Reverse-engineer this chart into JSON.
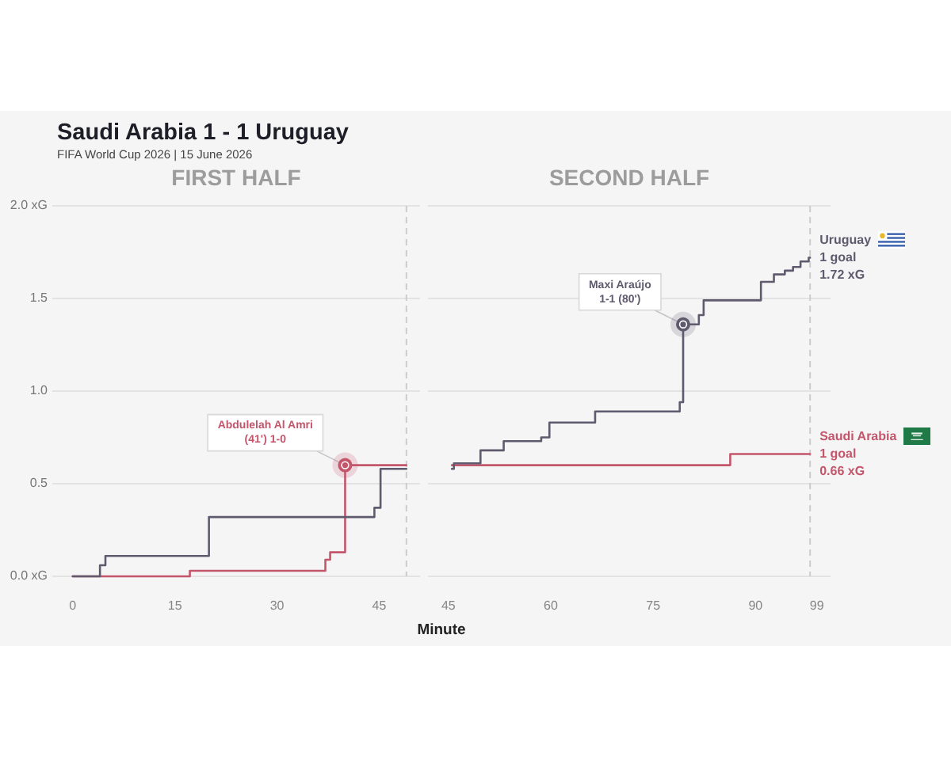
{
  "chart_data": [
    {
      "type": "other",
      "title": "Saudi Arabia 1 - 1 Uruguay",
      "subtitle": "FIFA World Cup 2026 | 15 June 2026"
    },
    {
      "type": "step",
      "title": "FIRST HALF",
      "xlim": [
        -3,
        51
      ],
      "xticks": [
        0,
        15,
        30,
        45
      ],
      "ylim": [
        0,
        2
      ],
      "yticks": [
        {
          "value": 0,
          "label": "0.0 xG"
        },
        0.5,
        {
          "value": 1,
          "label": "1.0"
        },
        1.5,
        {
          "value": 2,
          "label": "2.0 xG"
        }
      ],
      "grid": "y",
      "series": [
        {
          "color": "#5f5a6e",
          "x": [
            0,
            4,
            4.8,
            20,
            44.3,
            45.2,
            49
          ],
          "values": [
            0,
            0.06,
            0.11,
            0.32,
            0.37,
            0.58,
            0.58
          ]
        },
        {
          "color": "#c4566c",
          "x": [
            0,
            17.2,
            37.1,
            37.8,
            40,
            49
          ],
          "values": [
            0,
            0.03,
            0.09,
            0.13,
            0.6,
            0.6
          ]
        }
      ],
      "ref_lines": [
        {
          "axis": "x",
          "value": 49,
          "line_style": "dashed",
          "color": "#cccccc"
        }
      ],
      "annotations": [
        {
          "text": "Abdulelah Al Amri\n(41') 1-0",
          "x": 40,
          "y": 0.6
        }
      ]
    },
    {
      "type": "step",
      "title": "SECOND HALF",
      "xlabel": "Minute",
      "xlim": [
        42,
        101
      ],
      "xticks": [
        45,
        60,
        75,
        90,
        99
      ],
      "ylim": [
        0,
        2
      ],
      "yticks": [
        0,
        0.5,
        1,
        1.5,
        2
      ],
      "tick_labels": "x",
      "grid": "y",
      "series": [
        {
          "name": "Uruguay",
          "color": "#5f5a6e",
          "x": [
            45.5,
            45.8,
            49.7,
            53.1,
            58.6,
            59.8,
            66.5,
            78.9,
            79.4,
            81.7,
            82.4,
            90.8,
            92.7,
            94.3,
            95.5,
            96.6,
            97.8,
            98
          ],
          "values": [
            0.58,
            0.61,
            0.68,
            0.73,
            0.75,
            0.83,
            0.89,
            0.94,
            1.36,
            1.41,
            1.49,
            1.59,
            1.63,
            1.65,
            1.67,
            1.7,
            1.72,
            1.72
          ],
          "value_labels": [
            null,
            null,
            null,
            null,
            null,
            null,
            null,
            null,
            null,
            null,
            null,
            null,
            null,
            null,
            null,
            null,
            null,
            "1 goal\n1.72 xG"
          ]
        },
        {
          "name": "Saudi Arabia",
          "color": "#c4566c",
          "x": [
            45.5,
            86.3,
            98
          ],
          "values": [
            0.6,
            0.66,
            0.66
          ],
          "value_labels": [
            null,
            null,
            "1 goal\n0.66 xG"
          ]
        }
      ],
      "ref_lines": [
        {
          "axis": "x",
          "value": 98,
          "line_style": "dashed",
          "color": "#cccccc"
        }
      ],
      "annotations": [
        {
          "text": "Maxi Araújo\n1-1 (80')",
          "x": 79.4,
          "y": 1.36
        }
      ]
    }
  ]
}
